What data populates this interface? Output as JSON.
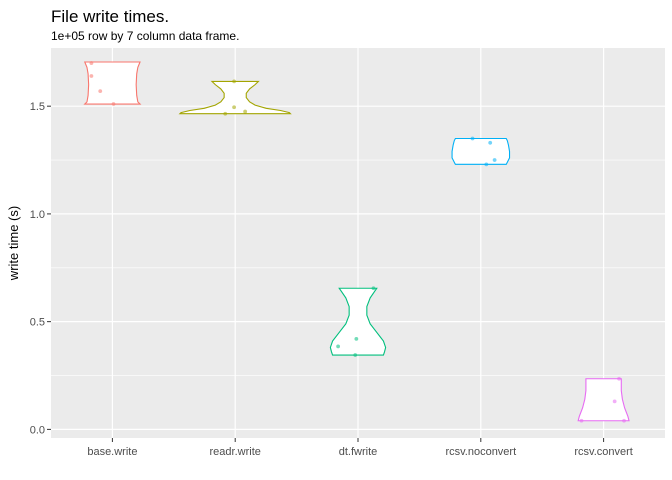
{
  "chart_data": {
    "type": "violin",
    "title": "File write times.",
    "subtitle": "1e+05 row by 7 column data frame.",
    "xlabel": "",
    "ylabel": "write time (s)",
    "ylim": [
      -0.04,
      1.77
    ],
    "yticks": [
      0.0,
      0.5,
      1.0,
      1.5
    ],
    "ytick_labels": [
      "0.0",
      "0.5",
      "1.0",
      "1.5"
    ],
    "grid": true,
    "legend": "none",
    "categories": [
      "base.write",
      "readr.write",
      "dt.fwrite",
      "rcsv.noconvert",
      "rcsv.convert"
    ],
    "series": [
      {
        "category": "base.write",
        "color": "#F8766D",
        "points": [
          {
            "x": -0.38,
            "y": 1.7
          },
          {
            "x": -0.38,
            "y": 1.64
          },
          {
            "x": -0.22,
            "y": 1.57
          },
          {
            "x": 0.02,
            "y": 1.51
          }
        ],
        "profile": [
          [
            1.51,
            0.5
          ],
          [
            1.52,
            0.46
          ],
          [
            1.55,
            0.44
          ],
          [
            1.6,
            0.43
          ],
          [
            1.65,
            0.44
          ],
          [
            1.68,
            0.46
          ],
          [
            1.705,
            0.5
          ]
        ]
      },
      {
        "category": "readr.write",
        "color": "#A3A500",
        "points": [
          {
            "x": -0.02,
            "y": 1.615
          },
          {
            "x": -0.02,
            "y": 1.495
          },
          {
            "x": -0.18,
            "y": 1.465
          },
          {
            "x": 0.18,
            "y": 1.475
          }
        ],
        "profile": [
          [
            1.465,
            1.0
          ],
          [
            1.47,
            0.98
          ],
          [
            1.48,
            0.82
          ],
          [
            1.49,
            0.56
          ],
          [
            1.505,
            0.36
          ],
          [
            1.52,
            0.26
          ],
          [
            1.54,
            0.2
          ],
          [
            1.56,
            0.2
          ],
          [
            1.58,
            0.26
          ],
          [
            1.6,
            0.36
          ],
          [
            1.615,
            0.42
          ]
        ]
      },
      {
        "category": "dt.fwrite",
        "color": "#00BF7D",
        "points": [
          {
            "x": 0.28,
            "y": 0.655
          },
          {
            "x": -0.03,
            "y": 0.42
          },
          {
            "x": -0.36,
            "y": 0.385
          },
          {
            "x": -0.05,
            "y": 0.345
          }
        ],
        "profile": [
          [
            0.345,
            0.46
          ],
          [
            0.36,
            0.48
          ],
          [
            0.38,
            0.5
          ],
          [
            0.41,
            0.46
          ],
          [
            0.45,
            0.34
          ],
          [
            0.49,
            0.22
          ],
          [
            0.53,
            0.16
          ],
          [
            0.57,
            0.16
          ],
          [
            0.61,
            0.22
          ],
          [
            0.64,
            0.3
          ],
          [
            0.655,
            0.34
          ]
        ]
      },
      {
        "category": "rcsv.noconvert",
        "color": "#00B0F6",
        "points": [
          {
            "x": -0.15,
            "y": 1.35
          },
          {
            "x": 0.17,
            "y": 1.33
          },
          {
            "x": 0.25,
            "y": 1.25
          },
          {
            "x": 0.1,
            "y": 1.23
          }
        ],
        "profile": [
          [
            1.23,
            0.46
          ],
          [
            1.24,
            0.48
          ],
          [
            1.26,
            0.52
          ],
          [
            1.29,
            0.52
          ],
          [
            1.32,
            0.5
          ],
          [
            1.34,
            0.48
          ],
          [
            1.35,
            0.46
          ]
        ]
      },
      {
        "category": "rcsv.convert",
        "color": "#E76BF3",
        "points": [
          {
            "x": 0.28,
            "y": 0.235
          },
          {
            "x": 0.2,
            "y": 0.13
          },
          {
            "x": -0.4,
            "y": 0.04
          },
          {
            "x": 0.37,
            "y": 0.04
          }
        ],
        "profile": [
          [
            0.04,
            0.46
          ],
          [
            0.06,
            0.44
          ],
          [
            0.1,
            0.38
          ],
          [
            0.14,
            0.34
          ],
          [
            0.18,
            0.32
          ],
          [
            0.21,
            0.32
          ],
          [
            0.235,
            0.32
          ]
        ]
      }
    ]
  }
}
